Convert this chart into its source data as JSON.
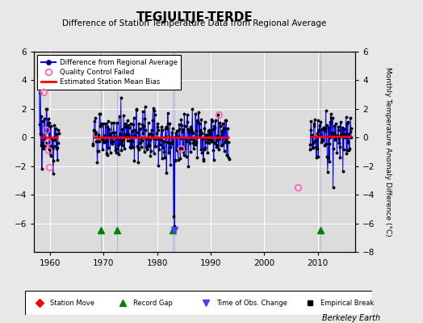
{
  "title": "TEGJULTJE-TERDE",
  "subtitle": "Difference of Station Temperature Data from Regional Average",
  "ylabel": "Monthly Temperature Anomaly Difference (°C)",
  "xlabel_credit": "Berkeley Earth",
  "bg_color": "#e8e8e8",
  "plot_bg_color": "#dcdcdc",
  "ylim": [
    -8,
    6
  ],
  "xlim": [
    1957,
    2017
  ],
  "yticks_left": [
    -6,
    -4,
    -2,
    0,
    2,
    4,
    6
  ],
  "yticks_right": [
    -8,
    -6,
    -4,
    -2,
    0,
    2,
    4,
    6
  ],
  "xticks": [
    1960,
    1970,
    1980,
    1990,
    2000,
    2010
  ],
  "line_color": "#0000ff",
  "bias_color": "#ff0000",
  "qc_color": "#ff69b4",
  "data_color": "#000000",
  "record_gap_color": "#008000",
  "obs_change_color": "#4444ff",
  "station_move_color": "#ff0000",
  "empirical_break_color": "#000000",
  "segments": [
    {
      "x_start": 1958.0,
      "x_end": 1961.6,
      "bias": 0.0
    },
    {
      "x_start": 1968.0,
      "x_end": 1993.4,
      "bias": 0.0
    },
    {
      "x_start": 2008.5,
      "x_end": 2016.2,
      "bias": 0.1
    }
  ],
  "record_gaps": [
    1969.5,
    1972.5,
    1983.0,
    2010.5
  ],
  "obs_changes": [
    1983.2
  ],
  "qc_failed_points": [
    [
      1958.8,
      3.2
    ],
    [
      1959.3,
      0.5
    ],
    [
      1959.5,
      -0.3
    ],
    [
      1959.7,
      -0.9
    ],
    [
      1959.9,
      -2.1
    ],
    [
      1984.5,
      -0.8
    ],
    [
      1991.5,
      1.6
    ],
    [
      2006.3,
      -3.5
    ]
  ],
  "gap_y": -6.5,
  "obs_y": -6.5,
  "seed1": 123,
  "seed2": 456,
  "seed3": 789
}
